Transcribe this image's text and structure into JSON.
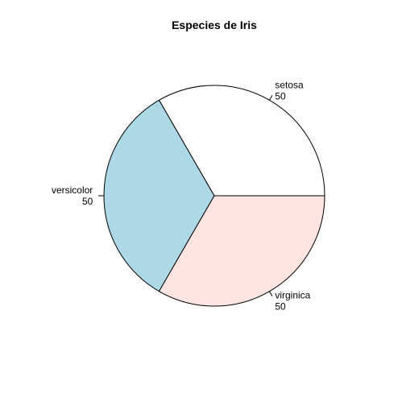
{
  "chart_data": {
    "type": "pie",
    "title": "Especies de Iris",
    "categories": [
      "setosa",
      "versicolor",
      "virginica"
    ],
    "values": [
      50,
      50,
      50
    ],
    "value_labels": [
      "50",
      "50",
      "50"
    ],
    "colors": [
      "#FFFFFF",
      "#ADD8E6",
      "#FFE4E1"
    ],
    "outline_color": "#000000",
    "start_angle_degrees": 0,
    "direction": "counterclockwise",
    "legend": "none",
    "grid": false
  }
}
